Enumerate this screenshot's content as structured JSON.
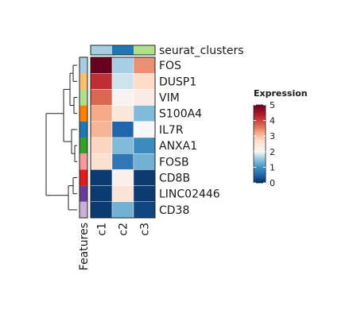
{
  "chart_data": {
    "type": "heatmap",
    "annotation_label": "seurat_clusters",
    "row_annotation_label": "Features",
    "columns": [
      "c1",
      "c2",
      "c3"
    ],
    "column_annotation_colors": [
      "#a6cee3",
      "#1f78b4",
      "#b2df8a"
    ],
    "rows": [
      "FOS",
      "DUSP1",
      "VIM",
      "S100A4",
      "IL7R",
      "ANXA1",
      "FOSB",
      "CD8B",
      "LINC02446",
      "CD38"
    ],
    "row_annotation_colors": [
      "#a6cee3",
      "#fdbf6f",
      "#b2df8a",
      "#ff7f00",
      "#1f78b4",
      "#33a02c",
      "#fb9a99",
      "#e31a1c",
      "#6a3d9a",
      "#cab2d6"
    ],
    "values": [
      [
        5.0,
        1.6,
        3.4
      ],
      [
        4.2,
        1.8,
        2.7
      ],
      [
        3.7,
        2.1,
        2.3
      ],
      [
        3.2,
        2.4,
        1.4
      ],
      [
        3.1,
        0.5,
        2.0
      ],
      [
        2.8,
        1.4,
        0.9
      ],
      [
        2.6,
        0.7,
        1.3
      ],
      [
        0.1,
        2.2,
        0.1
      ],
      [
        0.1,
        2.5,
        0.1
      ],
      [
        0.1,
        1.3,
        0.2
      ]
    ],
    "legend": {
      "title": "Expression",
      "min": 0,
      "max": 5,
      "ticks": [
        0,
        1,
        2,
        3,
        4,
        5
      ]
    }
  }
}
